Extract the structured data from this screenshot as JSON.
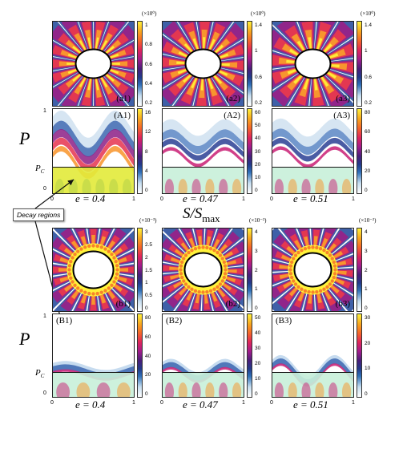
{
  "top_row": {
    "panels": [
      {
        "label": "(a1)",
        "multiplier": "(×10⁰)",
        "ticks": [
          "1",
          "0.8",
          "0.6",
          "0.4",
          "0.2"
        ]
      },
      {
        "label": "(a2)",
        "multiplier": "(×10⁰)",
        "ticks": [
          "1.4",
          "1",
          "0.6",
          "0.2"
        ]
      },
      {
        "label": "(a3)",
        "multiplier": "(×10⁰)",
        "ticks": [
          "1.4",
          "1",
          "0.6",
          "0.2"
        ]
      }
    ]
  },
  "upper_maps": {
    "panels": [
      {
        "label": "(A1)",
        "ticks": [
          "16",
          "12",
          "8",
          "4",
          "0"
        ]
      },
      {
        "label": "(A2)",
        "ticks": [
          "60",
          "50",
          "40",
          "30",
          "20",
          "10",
          "0"
        ]
      },
      {
        "label": "(A3)",
        "ticks": [
          "80",
          "60",
          "40",
          "20",
          "0"
        ]
      }
    ],
    "y_axis_label": "P",
    "y_ticks": {
      "top": "1",
      "pc": "P",
      "pc_sub": "C",
      "zero": "0"
    },
    "x_ticks": [
      "0",
      "1"
    ],
    "e_labels": [
      "e = 0.4",
      "e = 0.47",
      "e = 0.51"
    ]
  },
  "middle": {
    "x_axis_label": "S/S",
    "x_axis_sub": "max",
    "annotation": "Decay regions"
  },
  "bottom_row": {
    "panels": [
      {
        "label": "(b1)",
        "multiplier": "(×10⁻³)",
        "ticks": [
          "3",
          "2.5",
          "2",
          "1.5",
          "1",
          "0.5",
          "0"
        ]
      },
      {
        "label": "(b2)",
        "multiplier": "(×10⁻²)",
        "ticks": [
          "4",
          "3",
          "2",
          "1",
          "0"
        ]
      },
      {
        "label": "(b3)",
        "multiplier": "(×10⁻²)",
        "ticks": [
          "4",
          "3",
          "2",
          "1",
          "0"
        ]
      }
    ]
  },
  "lower_maps": {
    "panels": [
      {
        "label": "(B1)",
        "ticks": [
          "80",
          "60",
          "40",
          "20",
          "0"
        ]
      },
      {
        "label": "(B2)",
        "ticks": [
          "50",
          "40",
          "30",
          "20",
          "10",
          "0"
        ]
      },
      {
        "label": "(B3)",
        "ticks": [
          "30",
          "20",
          "10",
          "0"
        ]
      }
    ],
    "y_axis_label": "P",
    "y_ticks": {
      "top": "1",
      "pc": "P",
      "pc_sub": "C",
      "zero": "0"
    },
    "x_ticks": [
      "0",
      "1"
    ],
    "e_labels": [
      "e = 0.4",
      "e = 0.47",
      "e = 0.51"
    ]
  }
}
